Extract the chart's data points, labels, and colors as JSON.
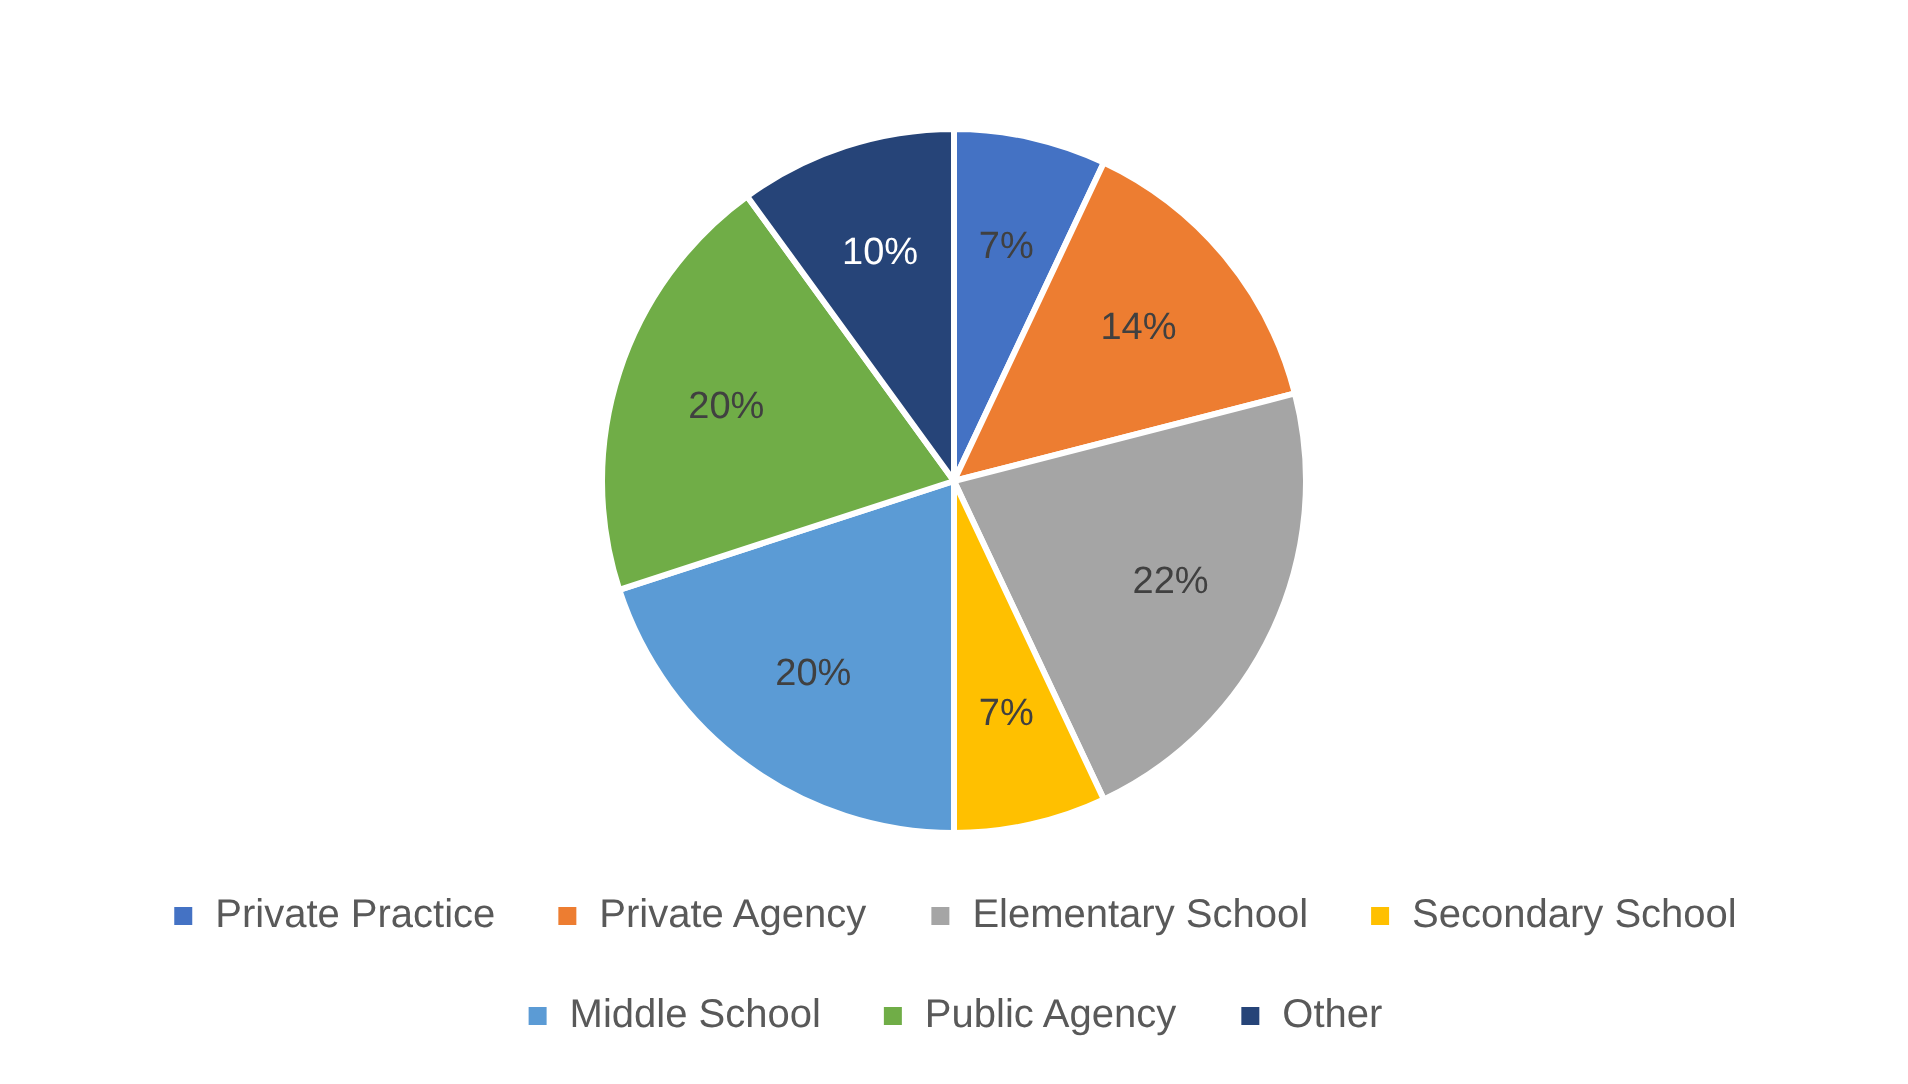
{
  "chart_data": {
    "type": "pie",
    "categories": [
      "Private Practice",
      "Private Agency",
      "Elementary School",
      "Secondary School",
      "Middle School",
      "Public Agency",
      "Other"
    ],
    "values": [
      7,
      14,
      22,
      7,
      20,
      20,
      10
    ],
    "value_labels": [
      "7%",
      "14%",
      "22%",
      "7%",
      "20%",
      "20%",
      "10%"
    ],
    "colors": [
      "#4472c4",
      "#ed7d31",
      "#a5a5a5",
      "#ffc000",
      "#5b9bd5",
      "#70ad47",
      "#264478"
    ],
    "legend": "bottom"
  }
}
